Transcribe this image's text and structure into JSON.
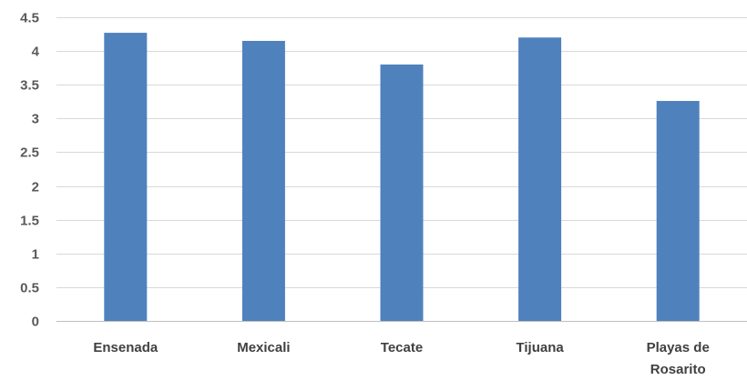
{
  "chart_data": {
    "type": "bar",
    "title": "",
    "xlabel": "",
    "ylabel": "",
    "categories": [
      "Ensenada",
      "Mexicali",
      "Tecate",
      "Tijuana",
      "Playas de Rosarito"
    ],
    "category_lines": [
      [
        "Ensenada"
      ],
      [
        "Mexicali"
      ],
      [
        "Tecate"
      ],
      [
        "Tijuana"
      ],
      [
        "Playas de",
        "Rosarito"
      ]
    ],
    "values": [
      4.27,
      4.15,
      3.8,
      4.2,
      3.26
    ],
    "ylim": [
      0,
      4.5
    ],
    "yticks": [
      0,
      0.5,
      1,
      1.5,
      2,
      2.5,
      3,
      3.5,
      4,
      4.5
    ],
    "ytick_labels": [
      "0",
      "0.5",
      "1",
      "1.5",
      "2",
      "2.5",
      "3",
      "3.5",
      "4",
      "4.5"
    ],
    "grid": true,
    "legend": "none",
    "bar_color": "#4f81bd"
  }
}
